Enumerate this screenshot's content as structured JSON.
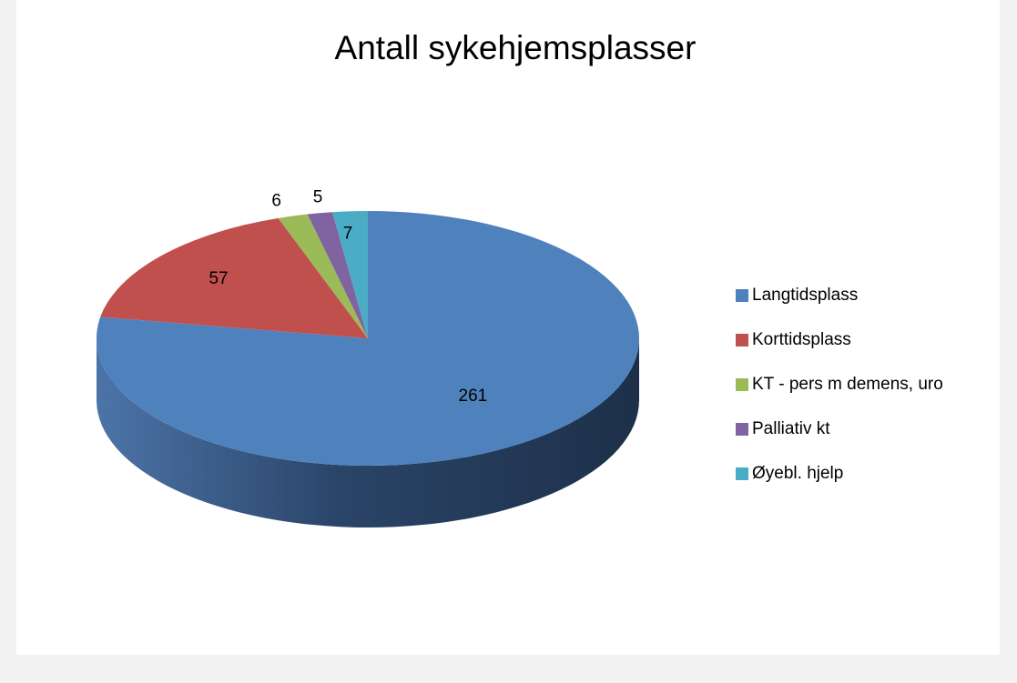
{
  "chart_data": {
    "type": "pie",
    "title": "Antall sykehjemsplasser",
    "categories": [
      "Langtidsplass",
      "Korttidsplass",
      "KT - pers m demens, uro",
      "Palliativ kt",
      "Øyebl. hjelp"
    ],
    "values": [
      261,
      57,
      6,
      5,
      7
    ],
    "colors": [
      "#4f81bd",
      "#c0504d",
      "#9bbb59",
      "#8064a2",
      "#4bacc6"
    ],
    "legend": "right"
  }
}
